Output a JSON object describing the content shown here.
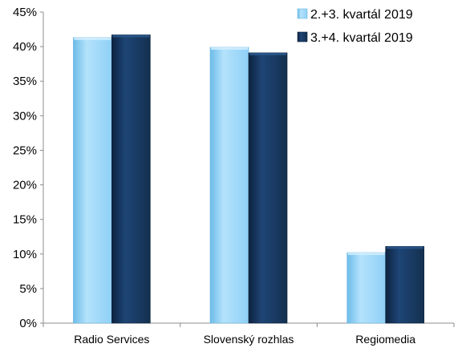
{
  "chart_data": {
    "type": "bar",
    "title": "",
    "xlabel": "",
    "ylabel": "",
    "categories": [
      "Radio Services",
      "Slovenský rozhlas",
      "Regiomedia"
    ],
    "series": [
      {
        "name": "2.+3. kvartál 2019",
        "values": [
          41.3,
          39.9,
          10.2
        ],
        "color": "#8fd0f7"
      },
      {
        "name": "3.+4. kvartál 2019",
        "values": [
          41.7,
          39.1,
          11.1
        ],
        "color": "#17365d"
      }
    ],
    "ylim": [
      0,
      45
    ],
    "y_ticks": [
      0,
      5,
      10,
      15,
      20,
      25,
      30,
      35,
      40,
      45
    ],
    "y_tick_format": "percent",
    "grid": false,
    "legend_position": "top-right"
  }
}
